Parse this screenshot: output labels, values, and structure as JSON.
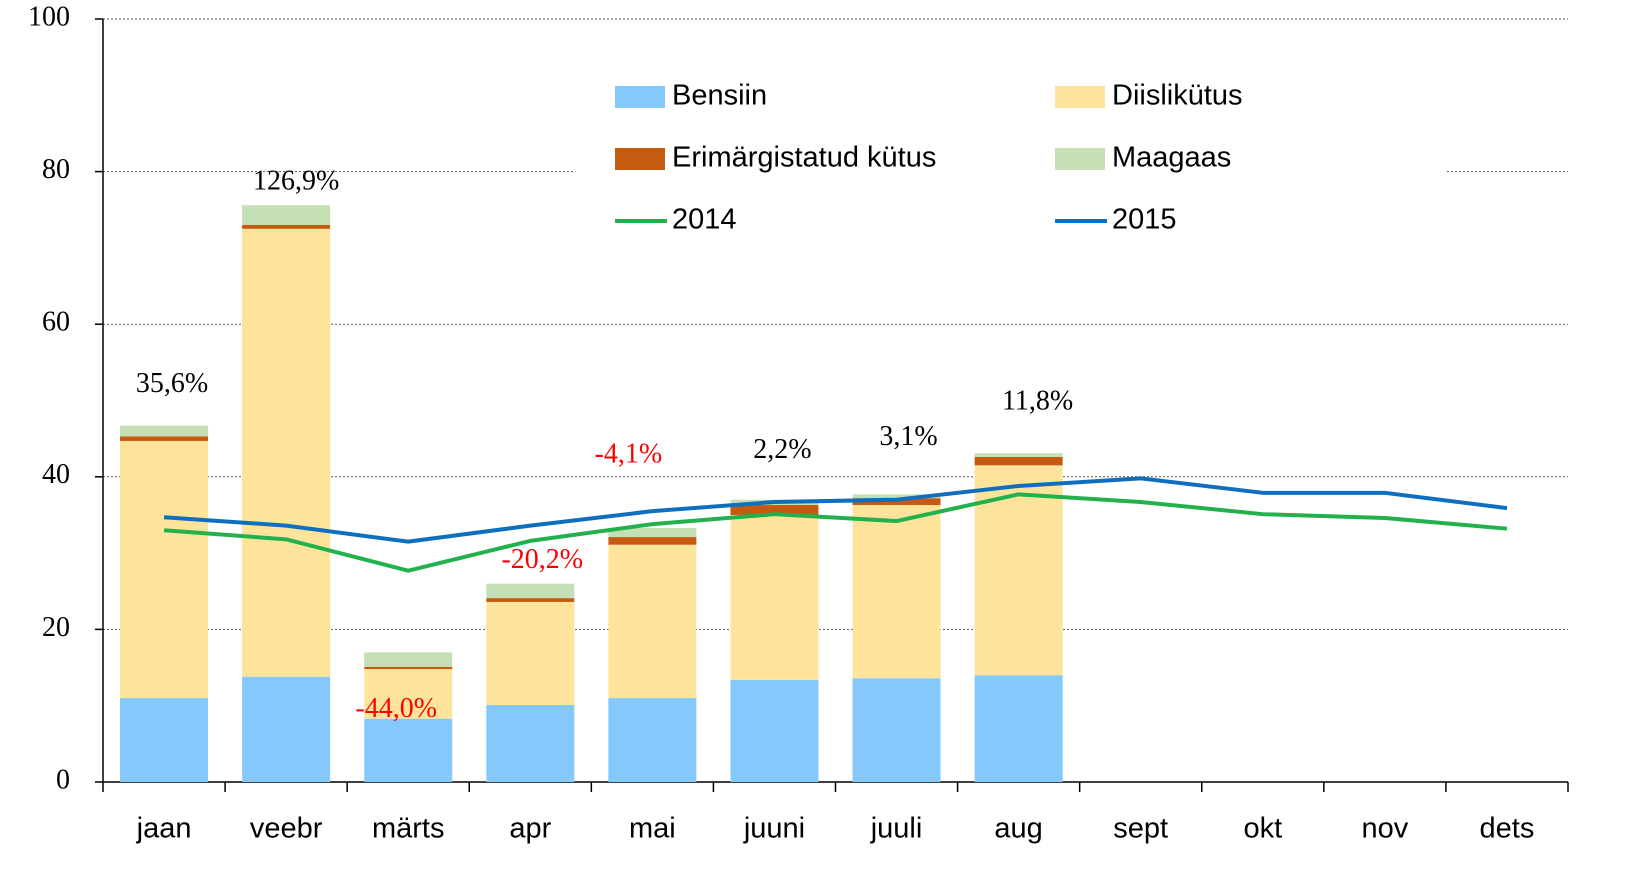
{
  "chart_data": {
    "type": "bar",
    "categories": [
      "jaan",
      "veebr",
      "märts",
      "apr",
      "mai",
      "juuni",
      "juuli",
      "aug",
      "sept",
      "okt",
      "nov",
      "dets"
    ],
    "series": [
      {
        "name": "Bensiin",
        "type": "bar",
        "color": "#85c8fb",
        "values": [
          11.0,
          13.8,
          8.3,
          10.1,
          11.0,
          13.4,
          13.6,
          14.0,
          null,
          null,
          null,
          null
        ]
      },
      {
        "name": "Diislikütus",
        "type": "bar",
        "color": "#fde49a",
        "values": [
          33.7,
          58.7,
          6.5,
          13.5,
          20.1,
          21.6,
          22.7,
          27.5,
          null,
          null,
          null,
          null
        ]
      },
      {
        "name": "Erimärgistatud kütus",
        "type": "bar",
        "color": "#c55a11",
        "values": [
          0.6,
          0.5,
          0.3,
          0.5,
          1.0,
          1.3,
          0.9,
          1.1,
          null,
          null,
          null,
          null
        ]
      },
      {
        "name": "Maagaas",
        "type": "bar",
        "color": "#c5e0b4",
        "values": [
          1.4,
          2.6,
          1.9,
          1.9,
          1.2,
          0.7,
          0.5,
          0.5,
          null,
          null,
          null,
          null
        ]
      },
      {
        "name": "2014",
        "type": "line",
        "color": "#22b14c",
        "values": [
          33.0,
          31.8,
          27.7,
          31.6,
          33.8,
          35.1,
          34.2,
          37.7,
          36.7,
          35.1,
          34.6,
          33.2
        ]
      },
      {
        "name": "2015",
        "type": "line",
        "color": "#0f6fbf",
        "values": [
          34.7,
          33.6,
          31.5,
          33.6,
          35.5,
          36.7,
          37.0,
          38.8,
          39.8,
          37.9,
          37.9,
          35.9
        ]
      }
    ],
    "annotations": [
      {
        "text": "35,6%",
        "color": "#000000"
      },
      {
        "text": "126,9%",
        "color": "#000000"
      },
      {
        "text": "-44,0%",
        "color": "#ff0000"
      },
      {
        "text": "-20,2%",
        "color": "#ff0000"
      },
      {
        "text": "-4,1%",
        "color": "#ff0000"
      },
      {
        "text": "2,2%",
        "color": "#000000"
      },
      {
        "text": "3,1%",
        "color": "#000000"
      },
      {
        "text": "11,8%",
        "color": "#000000"
      },
      null,
      null,
      null,
      null
    ],
    "ylim": [
      0,
      100
    ],
    "yticks": [
      0,
      20,
      40,
      60,
      80,
      100
    ],
    "grid": true
  }
}
